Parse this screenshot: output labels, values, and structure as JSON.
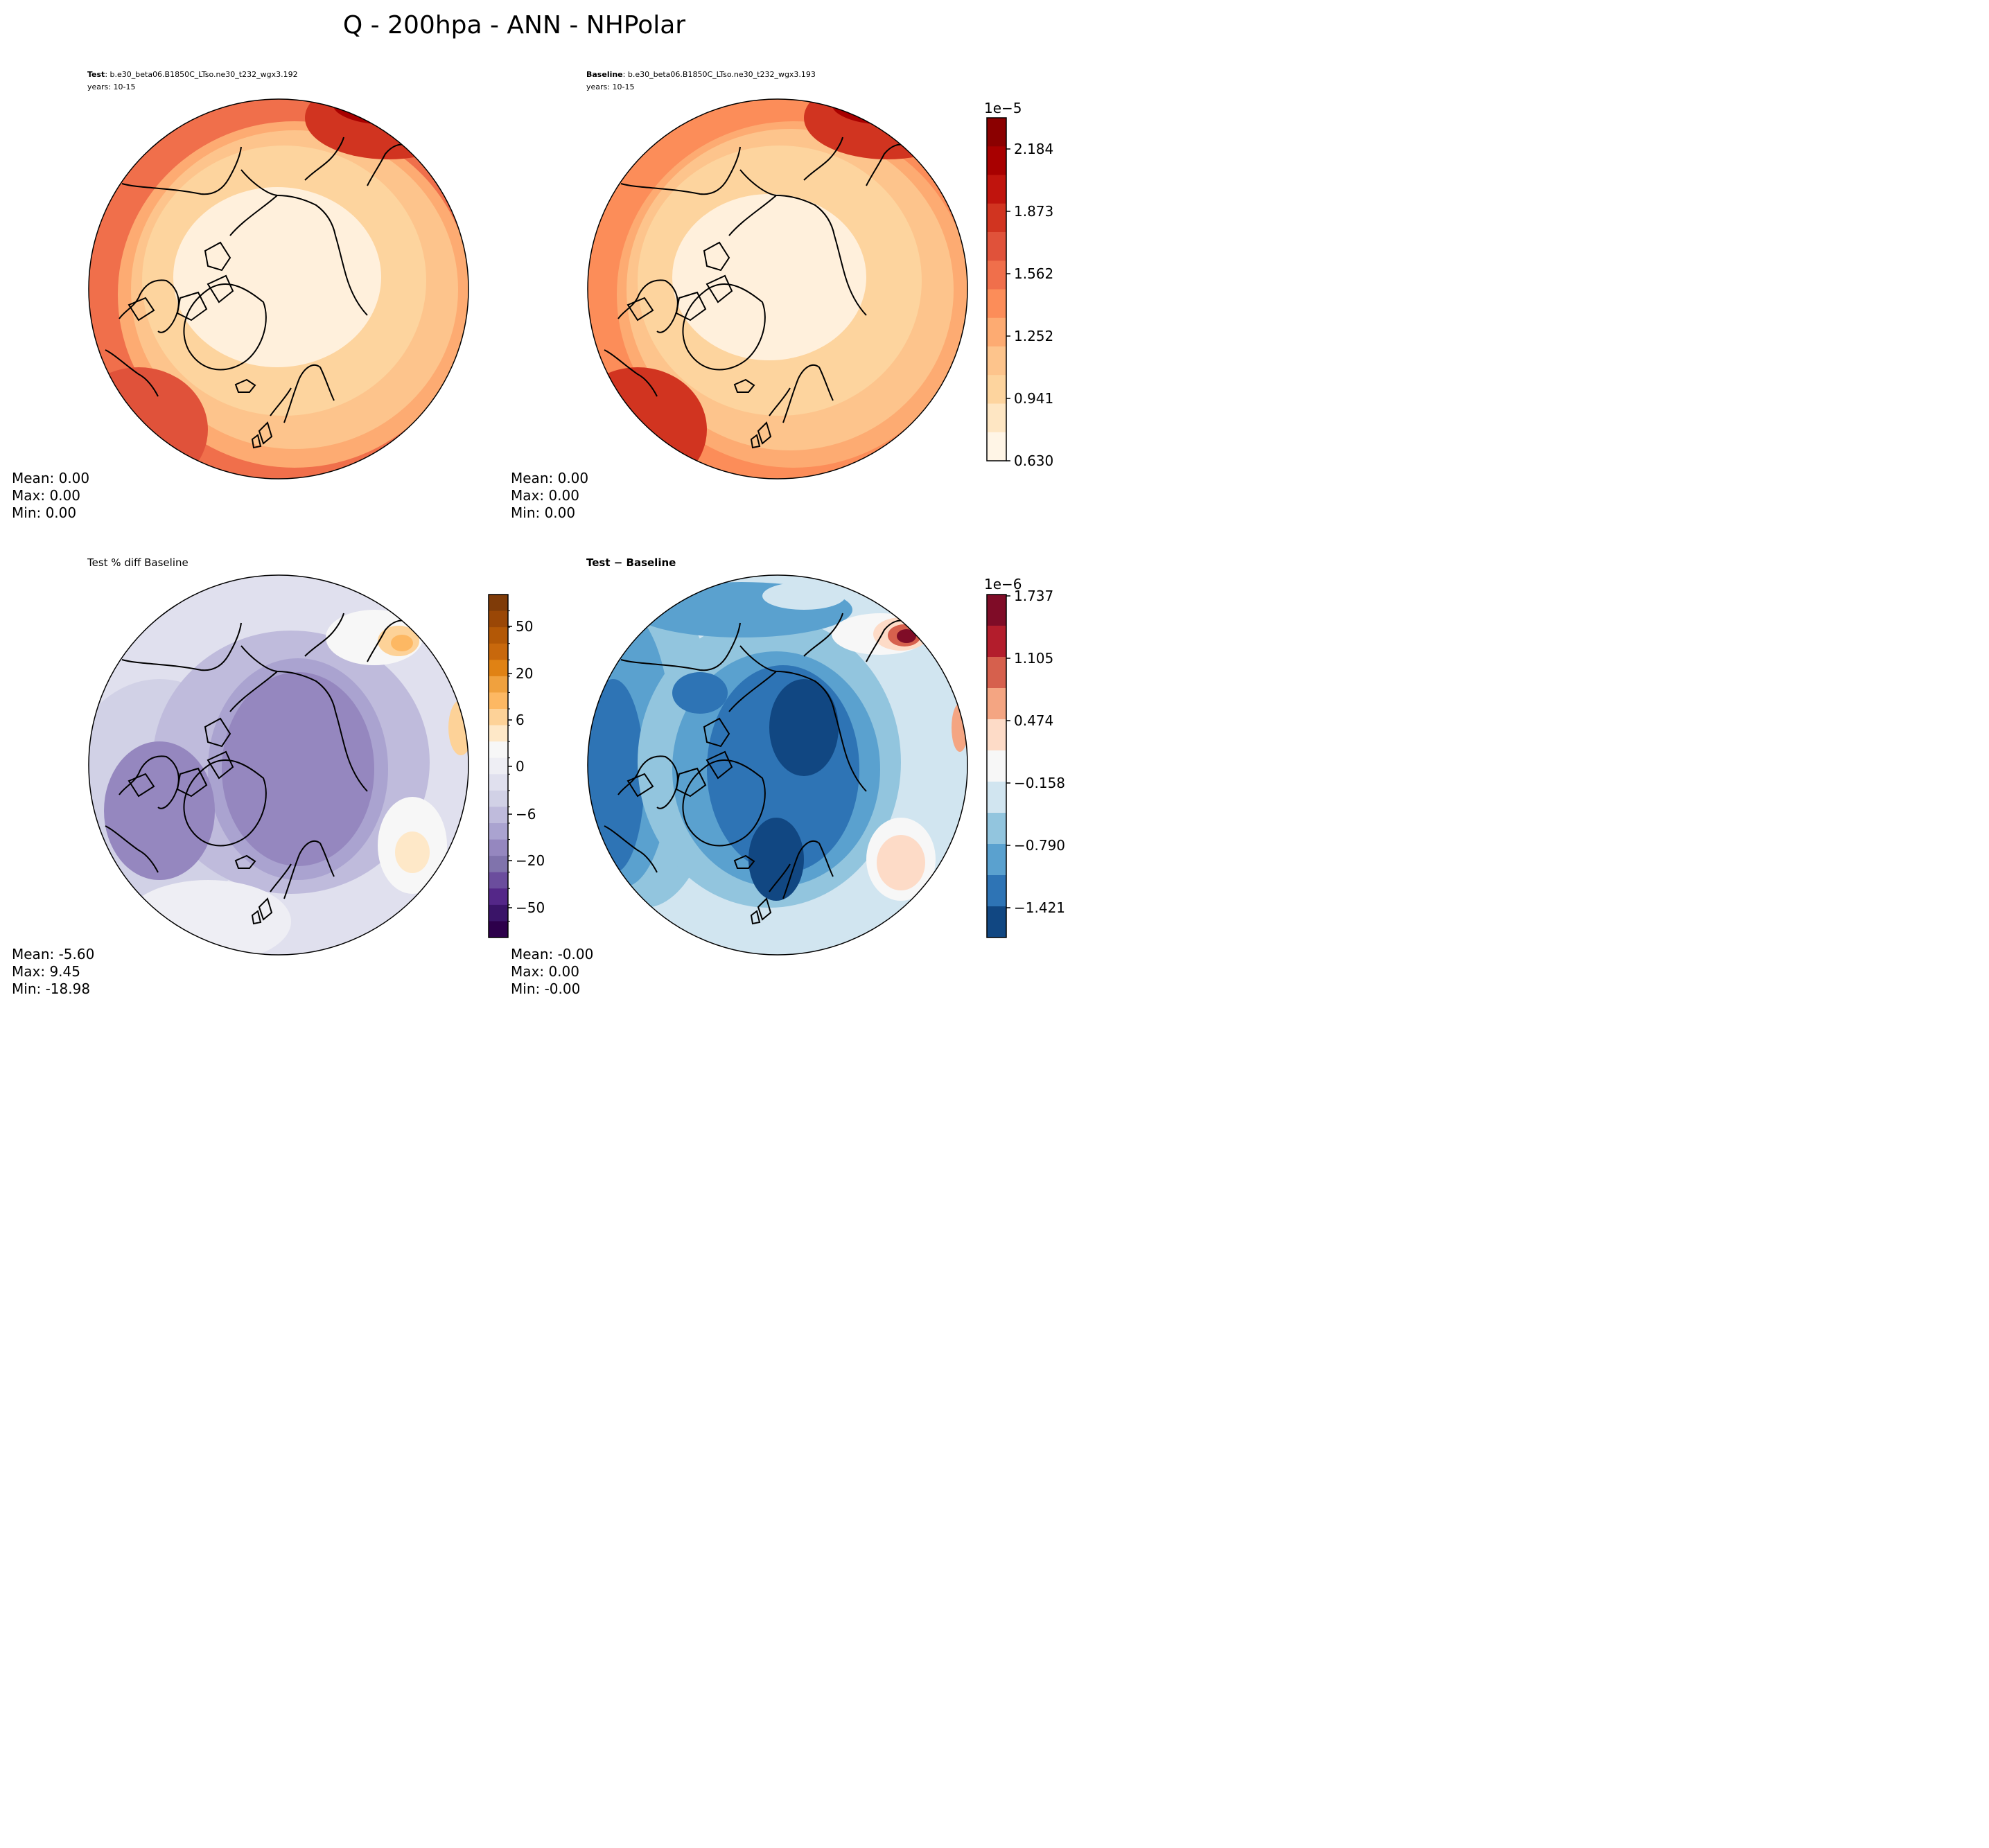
{
  "figure_title": "Q - 200hpa - ANN - NHPolar",
  "chart_data": [
    {
      "type": "heatmap",
      "projection": "north-polar-stereographic",
      "panel": "top-left",
      "title_bold": "Test",
      "title_rest": ": b.e30_beta06.B1850C_LTso.ne30_t232_wgx3.192",
      "subtitle": "years: 10-15",
      "stats": [
        "Mean:  0.00",
        "Max:  0.00",
        "Min:  0.00"
      ],
      "colormap": "OrRd",
      "shared_colorbar": "full-field"
    },
    {
      "type": "heatmap",
      "projection": "north-polar-stereographic",
      "panel": "top-right",
      "title_bold": "Baseline",
      "title_rest": ": b.e30_beta06.B1850C_LTso.ne30_t232_wgx3.193",
      "subtitle": "years: 10-15",
      "stats": [
        "Mean:  0.00",
        "Max:  0.00",
        "Min:  0.00"
      ],
      "colormap": "OrRd",
      "shared_colorbar": "full-field"
    },
    {
      "type": "heatmap",
      "projection": "north-polar-stereographic",
      "panel": "bottom-left",
      "title": "Test % diff Baseline",
      "stats": [
        "Mean: -5.60",
        "Max:  9.45",
        "Min: -18.98"
      ],
      "colormap": "PuOr_r",
      "colorbar": "pct-diff"
    },
    {
      "type": "heatmap",
      "projection": "north-polar-stereographic",
      "panel": "bottom-right",
      "title": "Test − Baseline",
      "stats": [
        "Mean: -0.00",
        "Max:  0.00",
        "Min: -0.00"
      ],
      "colormap": "RdBu_r",
      "colorbar": "abs-diff"
    }
  ],
  "colorbars": {
    "full-field": {
      "exponent_label": "1e−5",
      "ticks": [
        "0.630",
        "0.941",
        "1.252",
        "1.562",
        "1.873",
        "2.184"
      ],
      "range": [
        0.63,
        2.4
      ],
      "colors": [
        "#fff5e6",
        "#fee6c3",
        "#fdd49e",
        "#fdc48c",
        "#fdab72",
        "#fc8d59",
        "#f06f4b",
        "#e0523a",
        "#d13420",
        "#c0140d",
        "#a80000",
        "#8b0000"
      ]
    },
    "pct-diff": {
      "ticks": [
        "50",
        "20",
        "6",
        "0",
        "−6",
        "−20",
        "−50"
      ],
      "colors_top_to_bottom": [
        "#7f3b08",
        "#9a4706",
        "#b35806",
        "#c8680c",
        "#e08214",
        "#f0a13e",
        "#fdb863",
        "#fdd298",
        "#fee8c8",
        "#f7f7f7",
        "#eeeef4",
        "#e0e0ee",
        "#d1d1e6",
        "#bfbbdc",
        "#aaa3d0",
        "#9587bf",
        "#8073ac",
        "#6b4d9d",
        "#542788",
        "#3a1468",
        "#2d004b"
      ]
    },
    "abs-diff": {
      "exponent_label": "1e−6",
      "ticks": [
        "1.737",
        "1.105",
        "0.474",
        "−0.158",
        "−0.790",
        "−1.421"
      ],
      "colors_top_to_bottom": [
        "#7f0c27",
        "#b31d2c",
        "#d6604d",
        "#f4a582",
        "#fddbc7",
        "#f7f7f7",
        "#d1e5f0",
        "#92c5de",
        "#5aa1cf",
        "#2e74b5",
        "#114782"
      ]
    }
  }
}
